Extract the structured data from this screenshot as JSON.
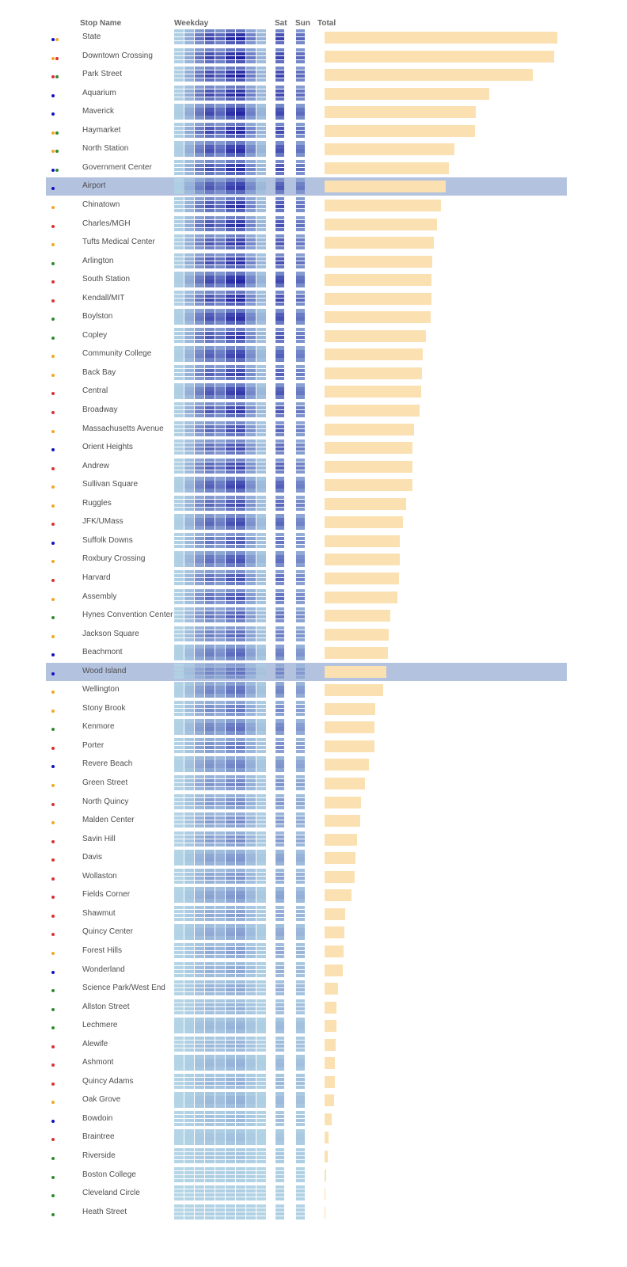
{
  "chart_data": {
    "type": "table",
    "columns": [
      "Stop Name",
      "Weekday",
      "Sat",
      "Sun",
      "Total"
    ],
    "line_colors": {
      "blue": "#1010c8",
      "orange": "#f5a623",
      "red": "#e03030",
      "green": "#2e8b2e"
    },
    "highlighted": [
      "Airport",
      "Wood Island"
    ],
    "rows": [
      {
        "name": "State",
        "lines": [
          "blue",
          "orange"
        ],
        "total": 1.0,
        "peak": 1.0
      },
      {
        "name": "Downtown Crossing",
        "lines": [
          "orange",
          "red"
        ],
        "total": 0.988,
        "peak": 1.0
      },
      {
        "name": "Park Street",
        "lines": [
          "red",
          "green"
        ],
        "total": 0.895,
        "peak": 1.0
      },
      {
        "name": "Aquarium",
        "lines": [
          "blue"
        ],
        "total": 0.707,
        "peak": 0.95
      },
      {
        "name": "Maverick",
        "lines": [
          "blue"
        ],
        "total": 0.65,
        "peak": 0.95
      },
      {
        "name": "Haymarket",
        "lines": [
          "orange",
          "green"
        ],
        "total": 0.646,
        "peak": 0.95
      },
      {
        "name": "North Station",
        "lines": [
          "orange",
          "green"
        ],
        "total": 0.558,
        "peak": 0.9
      },
      {
        "name": "Government Center",
        "lines": [
          "blue",
          "green"
        ],
        "total": 0.534,
        "peak": 0.9
      },
      {
        "name": "Airport",
        "lines": [
          "blue"
        ],
        "total": 0.521,
        "peak": 0.85
      },
      {
        "name": "Chinatown",
        "lines": [
          "orange"
        ],
        "total": 0.5,
        "peak": 0.9
      },
      {
        "name": "Charles/MGH",
        "lines": [
          "red"
        ],
        "total": 0.483,
        "peak": 0.9
      },
      {
        "name": "Tufts Medical Center",
        "lines": [
          "orange"
        ],
        "total": 0.469,
        "peak": 0.85
      },
      {
        "name": "Arlington",
        "lines": [
          "green"
        ],
        "total": 0.462,
        "peak": 0.9
      },
      {
        "name": "South Station",
        "lines": [
          "red"
        ],
        "total": 0.459,
        "peak": 0.95
      },
      {
        "name": "Kendall/MIT",
        "lines": [
          "red"
        ],
        "total": 0.459,
        "peak": 0.95
      },
      {
        "name": "Boylston",
        "lines": [
          "green"
        ],
        "total": 0.455,
        "peak": 0.9
      },
      {
        "name": "Copley",
        "lines": [
          "green"
        ],
        "total": 0.434,
        "peak": 0.85
      },
      {
        "name": "Community College",
        "lines": [
          "orange"
        ],
        "total": 0.421,
        "peak": 0.8
      },
      {
        "name": "Back Bay",
        "lines": [
          "orange"
        ],
        "total": 0.417,
        "peak": 0.8
      },
      {
        "name": "Central",
        "lines": [
          "red"
        ],
        "total": 0.414,
        "peak": 0.85
      },
      {
        "name": "Broadway",
        "lines": [
          "red"
        ],
        "total": 0.407,
        "peak": 0.85
      },
      {
        "name": "Massachusetts Avenue",
        "lines": [
          "orange"
        ],
        "total": 0.383,
        "peak": 0.75
      },
      {
        "name": "Orient Heights",
        "lines": [
          "blue"
        ],
        "total": 0.379,
        "peak": 0.75
      },
      {
        "name": "Andrew",
        "lines": [
          "red"
        ],
        "total": 0.379,
        "peak": 0.8
      },
      {
        "name": "Sullivan Square",
        "lines": [
          "orange"
        ],
        "total": 0.376,
        "peak": 0.8
      },
      {
        "name": "Ruggles",
        "lines": [
          "orange"
        ],
        "total": 0.352,
        "peak": 0.75
      },
      {
        "name": "JFK/UMass",
        "lines": [
          "red"
        ],
        "total": 0.338,
        "peak": 0.75
      },
      {
        "name": "Suffolk Downs",
        "lines": [
          "blue"
        ],
        "total": 0.324,
        "peak": 0.65
      },
      {
        "name": "Roxbury Crossing",
        "lines": [
          "orange"
        ],
        "total": 0.324,
        "peak": 0.7
      },
      {
        "name": "Harvard",
        "lines": [
          "red"
        ],
        "total": 0.321,
        "peak": 0.7
      },
      {
        "name": "Assembly",
        "lines": [
          "orange"
        ],
        "total": 0.314,
        "peak": 0.7
      },
      {
        "name": "Hynes Convention Center",
        "lines": [
          "green"
        ],
        "total": 0.283,
        "peak": 0.65
      },
      {
        "name": "Jackson Square",
        "lines": [
          "orange"
        ],
        "total": 0.276,
        "peak": 0.6
      },
      {
        "name": "Beachmont",
        "lines": [
          "blue"
        ],
        "total": 0.272,
        "peak": 0.6
      },
      {
        "name": "Wood Island",
        "lines": [
          "blue"
        ],
        "total": 0.266,
        "peak": 0.55
      },
      {
        "name": "Wellington",
        "lines": [
          "orange"
        ],
        "total": 0.252,
        "peak": 0.55
      },
      {
        "name": "Stony Brook",
        "lines": [
          "orange"
        ],
        "total": 0.217,
        "peak": 0.5
      },
      {
        "name": "Kenmore",
        "lines": [
          "green"
        ],
        "total": 0.214,
        "peak": 0.55
      },
      {
        "name": "Porter",
        "lines": [
          "red"
        ],
        "total": 0.214,
        "peak": 0.5
      },
      {
        "name": "Revere Beach",
        "lines": [
          "blue"
        ],
        "total": 0.19,
        "peak": 0.45
      },
      {
        "name": "Green Street",
        "lines": [
          "orange"
        ],
        "total": 0.172,
        "peak": 0.45
      },
      {
        "name": "North Quincy",
        "lines": [
          "red"
        ],
        "total": 0.155,
        "peak": 0.4
      },
      {
        "name": "Malden Center",
        "lines": [
          "orange"
        ],
        "total": 0.152,
        "peak": 0.4
      },
      {
        "name": "Savin Hill",
        "lines": [
          "red"
        ],
        "total": 0.141,
        "peak": 0.4
      },
      {
        "name": "Davis",
        "lines": [
          "red"
        ],
        "total": 0.134,
        "peak": 0.35
      },
      {
        "name": "Wollaston",
        "lines": [
          "red"
        ],
        "total": 0.128,
        "peak": 0.35
      },
      {
        "name": "Fields Corner",
        "lines": [
          "red"
        ],
        "total": 0.117,
        "peak": 0.35
      },
      {
        "name": "Shawmut",
        "lines": [
          "red"
        ],
        "total": 0.09,
        "peak": 0.3
      },
      {
        "name": "Quincy Center",
        "lines": [
          "red"
        ],
        "total": 0.086,
        "peak": 0.3
      },
      {
        "name": "Forest Hills",
        "lines": [
          "orange"
        ],
        "total": 0.083,
        "peak": 0.3
      },
      {
        "name": "Wonderland",
        "lines": [
          "blue"
        ],
        "total": 0.079,
        "peak": 0.25
      },
      {
        "name": "Science Park/West End",
        "lines": [
          "green"
        ],
        "total": 0.059,
        "peak": 0.25
      },
      {
        "name": "Allston Street",
        "lines": [
          "green"
        ],
        "total": 0.052,
        "peak": 0.2
      },
      {
        "name": "Lechmere",
        "lines": [
          "green"
        ],
        "total": 0.052,
        "peak": 0.2
      },
      {
        "name": "Alewife",
        "lines": [
          "red"
        ],
        "total": 0.048,
        "peak": 0.2
      },
      {
        "name": "Ashmont",
        "lines": [
          "red"
        ],
        "total": 0.045,
        "peak": 0.2
      },
      {
        "name": "Quincy Adams",
        "lines": [
          "red"
        ],
        "total": 0.045,
        "peak": 0.2
      },
      {
        "name": "Oak Grove",
        "lines": [
          "orange"
        ],
        "total": 0.041,
        "peak": 0.2
      },
      {
        "name": "Bowdoin",
        "lines": [
          "blue"
        ],
        "total": 0.031,
        "peak": 0.15
      },
      {
        "name": "Braintree",
        "lines": [
          "red"
        ],
        "total": 0.017,
        "peak": 0.12
      },
      {
        "name": "Riverside",
        "lines": [
          "green"
        ],
        "total": 0.014,
        "peak": 0.1
      },
      {
        "name": "Boston College",
        "lines": [
          "green"
        ],
        "total": 0.007,
        "peak": 0.05
      },
      {
        "name": "Cleveland Circle",
        "lines": [
          "green"
        ],
        "total": 0.005,
        "peak": 0.05
      },
      {
        "name": "Heath Street",
        "lines": [
          "green"
        ],
        "total": 0.003,
        "peak": 0.05
      }
    ]
  }
}
